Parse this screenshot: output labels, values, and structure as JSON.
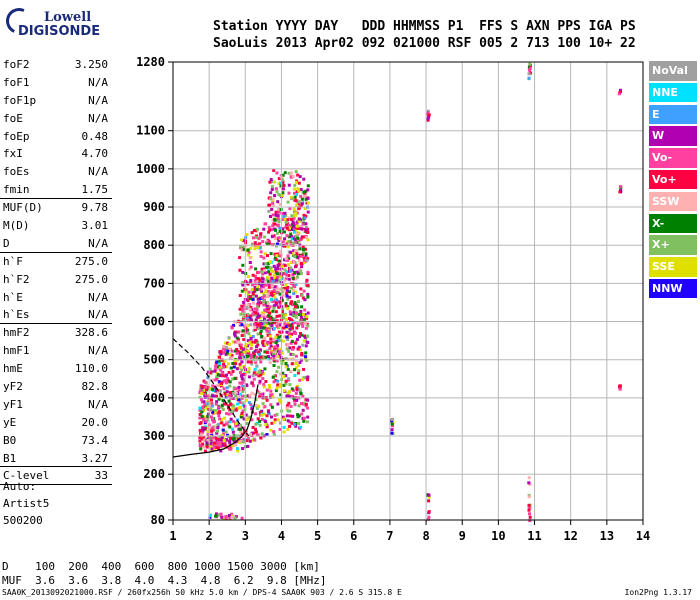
{
  "logo": {
    "line1": "Lowell",
    "line2": "DIGISONDE"
  },
  "header": {
    "line1": "Station YYYY DAY   DDD HHMMSS P1  FFS S AXN PPS IGA PS",
    "line2": "SaoLuis 2013 Apr02 092 021000 RSF 005 2 713 100 10+ 22"
  },
  "params": [
    {
      "label": "foF2",
      "value": "3.250"
    },
    {
      "label": "foF1",
      "value": "N/A"
    },
    {
      "label": "foF1p",
      "value": "N/A"
    },
    {
      "label": "foE",
      "value": "N/A"
    },
    {
      "label": "foEp",
      "value": "0.48"
    },
    {
      "label": "fxI",
      "value": "4.70"
    },
    {
      "label": "foEs",
      "value": "N/A"
    },
    {
      "label": "fmin",
      "value": "1.75"
    },
    {
      "label": "MUF(D)",
      "value": "9.78"
    },
    {
      "label": "M(D)",
      "value": "3.01"
    },
    {
      "label": "D",
      "value": "N/A"
    },
    {
      "label": "h`F",
      "value": "275.0"
    },
    {
      "label": "h`F2",
      "value": "275.0"
    },
    {
      "label": "h`E",
      "value": "N/A"
    },
    {
      "label": "h`Es",
      "value": "N/A"
    },
    {
      "label": "hmF2",
      "value": "328.6"
    },
    {
      "label": "hmF1",
      "value": "N/A"
    },
    {
      "label": "hmE",
      "value": "110.0"
    },
    {
      "label": "yF2",
      "value": "82.8"
    },
    {
      "label": "yF1",
      "value": "N/A"
    },
    {
      "label": "yE",
      "value": "20.0"
    },
    {
      "label": "B0",
      "value": "73.4"
    },
    {
      "label": "B1",
      "value": "3.27"
    },
    {
      "label": "C-level",
      "value": "33"
    }
  ],
  "extra": {
    "auto": "Auto:",
    "artist": "Artist5",
    "code": "500200"
  },
  "legend": [
    {
      "label": "NoVal",
      "color": "#a0a0a0"
    },
    {
      "label": "NNE",
      "color": "#00e0ff"
    },
    {
      "label": "E",
      "color": "#40a0ff"
    },
    {
      "label": "W",
      "color": "#b000b0"
    },
    {
      "label": "Vo-",
      "color": "#ff40a0"
    },
    {
      "label": "Vo+",
      "color": "#ff0040"
    },
    {
      "label": "SSW",
      "color": "#ffb0b0"
    },
    {
      "label": "X-",
      "color": "#008000"
    },
    {
      "label": "X+",
      "color": "#80c060"
    },
    {
      "label": "SSE",
      "color": "#e0e000"
    },
    {
      "label": "NNW",
      "color": "#2000ff"
    }
  ],
  "dscale": {
    "line1": "D    100  200  400  600  800 1000 1500 3000 [km]",
    "line2": "MUF  3.6  3.6  3.8  4.0  4.3  4.8  6.2  9.8 [MHz]"
  },
  "footer": "SAA0K_2013092021000.RSF / 260fx256h 50 kHz 5.0 km / DPS-4 SAA0K 903 / 2.6 S 315.8 E",
  "version": "Ion2Png 1.3.17",
  "chart_data": {
    "type": "scatter",
    "x_ticks": [
      1,
      2,
      3,
      4,
      5,
      6,
      7,
      8,
      9,
      10,
      11,
      12,
      13,
      14
    ],
    "y_ticks": [
      80,
      200,
      300,
      400,
      500,
      600,
      700,
      800,
      900,
      1000,
      1100,
      1280
    ],
    "xlim": [
      1,
      14
    ],
    "ylim": [
      80,
      1280
    ],
    "grid": true,
    "legend_position": "right",
    "traces": [
      {
        "name": "solid",
        "points": [
          [
            1,
            245
          ],
          [
            1.5,
            252
          ],
          [
            2,
            258
          ],
          [
            2.4,
            266
          ],
          [
            2.7,
            282
          ],
          [
            2.9,
            298
          ],
          [
            3.05,
            318
          ],
          [
            3.15,
            345
          ],
          [
            3.25,
            382
          ],
          [
            3.35,
            435
          ]
        ]
      },
      {
        "name": "dashed",
        "points": [
          [
            1,
            555
          ],
          [
            1.4,
            520
          ],
          [
            1.8,
            480
          ],
          [
            2.1,
            440
          ],
          [
            2.35,
            405
          ],
          [
            2.55,
            375
          ],
          [
            2.75,
            345
          ],
          [
            2.95,
            318
          ],
          [
            3.1,
            300
          ]
        ]
      }
    ]
  }
}
